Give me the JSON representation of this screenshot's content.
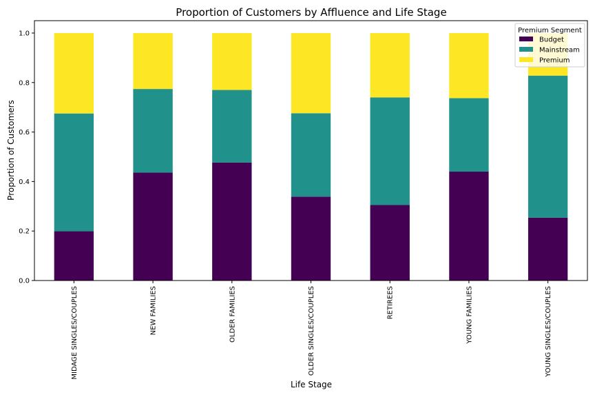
{
  "chart_data": {
    "type": "bar",
    "stacked": true,
    "title": "Proportion of Customers by Affluence and Life Stage",
    "xlabel": "Life Stage",
    "ylabel": "Proportion of Customers",
    "ylim": [
      0,
      1.05
    ],
    "yticks": [
      "0.0",
      "0.2",
      "0.4",
      "0.6",
      "0.8",
      "1.0"
    ],
    "grid": false,
    "legend": {
      "title": "Premium Segment",
      "position": "top-right"
    },
    "categories": [
      "MIDAGE SINGLES/COUPLES",
      "NEW FAMILIES",
      "OLDER FAMILIES",
      "OLDER SINGLES/COUPLES",
      "RETIREES",
      "YOUNG FAMILIES",
      "YOUNG SINGLES/COUPLES"
    ],
    "series": [
      {
        "name": "Budget",
        "color": "#440154",
        "values": [
          0.199,
          0.436,
          0.477,
          0.339,
          0.305,
          0.44,
          0.254
        ]
      },
      {
        "name": "Mainstream",
        "color": "#21918c",
        "values": [
          0.476,
          0.338,
          0.293,
          0.337,
          0.435,
          0.297,
          0.574
        ]
      },
      {
        "name": "Premium",
        "color": "#fde725",
        "values": [
          0.325,
          0.226,
          0.23,
          0.324,
          0.26,
          0.263,
          0.172
        ]
      }
    ]
  }
}
